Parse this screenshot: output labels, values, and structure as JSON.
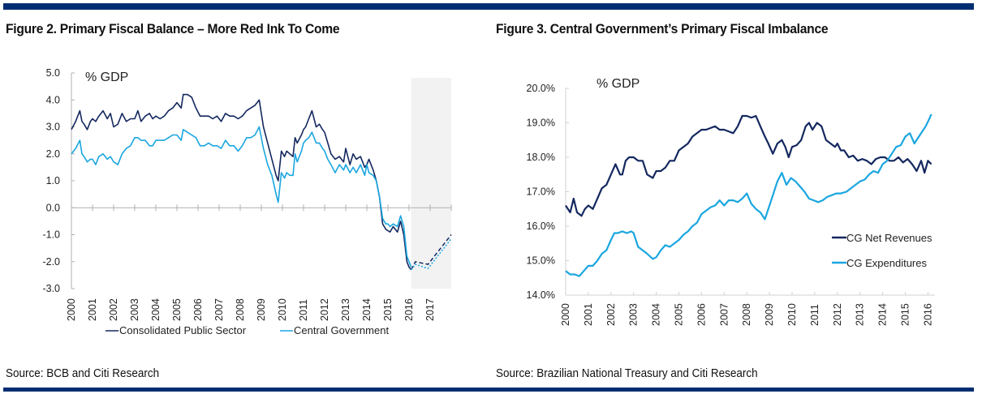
{
  "colors": {
    "dark": "#14285f",
    "light": "#1aa6e0",
    "bar": "#002d72",
    "shade": "#f2f2f2",
    "axis": "#b0b0b0"
  },
  "chart_data": [
    {
      "type": "line",
      "title": "Figure 2. Primary Fiscal Balance – More Red Ink To Come",
      "unit_label": "% GDP",
      "source": "Source: BCB and Citi Research",
      "xlabel": "",
      "ylabel": "% GDP",
      "ylim": [
        -3.0,
        5.0
      ],
      "xlim": [
        2000,
        2018
      ],
      "yticks": [
        "5.0",
        "4.0",
        "3.0",
        "2.0",
        "1.0",
        "0.0",
        "-1.0",
        "-2.0",
        "-3.0"
      ],
      "ytick_values": [
        5,
        4,
        3,
        2,
        1,
        0,
        -1,
        -2,
        -3
      ],
      "xticks": [
        "2000",
        "2001",
        "2002",
        "2003",
        "2004",
        "2005",
        "2006",
        "2007",
        "2008",
        "2009",
        "2010",
        "2011",
        "2012",
        "2013",
        "2014",
        "2015",
        "2016",
        "2017"
      ],
      "forecast_shade": [
        2016.1,
        2018
      ],
      "legend": [
        "Consolidated Public Sector",
        "Central Government"
      ],
      "legend_position": "bottom",
      "series": [
        {
          "name": "Consolidated Public Sector",
          "color": "dark",
          "x": [
            2000,
            2000.2,
            2000.4,
            2000.5,
            2000.6,
            2000.75,
            2000.9,
            2001.0,
            2001.15,
            2001.3,
            2001.5,
            2001.7,
            2001.85,
            2002.0,
            2002.2,
            2002.4,
            2002.6,
            2002.8,
            2003.0,
            2003.15,
            2003.3,
            2003.5,
            2003.7,
            2003.85,
            2004.0,
            2004.2,
            2004.4,
            2004.6,
            2004.8,
            2005.0,
            2005.2,
            2005.3,
            2005.5,
            2005.7,
            2005.9,
            2006.1,
            2006.3,
            2006.5,
            2006.7,
            2006.9,
            2007.1,
            2007.3,
            2007.5,
            2007.7,
            2007.9,
            2008.1,
            2008.3,
            2008.5,
            2008.7,
            2008.9,
            2009.1,
            2009.3,
            2009.5,
            2009.7,
            2009.8,
            2009.95,
            2010.1,
            2010.2,
            2010.35,
            2010.5,
            2010.6,
            2010.7,
            2010.9,
            2011.0,
            2011.1,
            2011.25,
            2011.4,
            2011.6,
            2011.75,
            2011.9,
            2012.0,
            2012.15,
            2012.3,
            2012.5,
            2012.7,
            2012.9,
            2013.0,
            2013.2,
            2013.35,
            2013.5,
            2013.7,
            2013.9,
            2014.0,
            2014.1,
            2014.3,
            2014.45,
            2014.6,
            2014.75,
            2014.9,
            2015.0,
            2015.1,
            2015.25,
            2015.45,
            2015.6,
            2015.75,
            2015.9,
            2016.0,
            2016.1
          ],
          "y": [
            2.9,
            3.2,
            3.6,
            3.2,
            3.1,
            2.9,
            3.2,
            3.3,
            3.2,
            3.4,
            3.6,
            3.3,
            3.5,
            3.0,
            3.1,
            3.5,
            3.2,
            3.3,
            3.3,
            3.6,
            3.2,
            3.4,
            3.5,
            3.3,
            3.4,
            3.3,
            3.4,
            3.6,
            3.7,
            3.9,
            3.7,
            4.2,
            4.2,
            4.1,
            3.7,
            3.4,
            3.4,
            3.4,
            3.3,
            3.4,
            3.2,
            3.5,
            3.4,
            3.4,
            3.3,
            3.4,
            3.6,
            3.7,
            3.8,
            4.0,
            3.0,
            2.4,
            1.8,
            1.2,
            1.0,
            2.1,
            1.9,
            2.1,
            2.0,
            1.9,
            2.6,
            2.4,
            2.7,
            2.9,
            3.0,
            3.3,
            3.6,
            3.0,
            3.1,
            2.9,
            2.8,
            2.4,
            2.0,
            1.8,
            1.9,
            1.7,
            2.2,
            1.6,
            2.0,
            1.8,
            1.9,
            1.5,
            1.6,
            1.8,
            1.4,
            1.0,
            0.4,
            -0.6,
            -0.8,
            -0.85,
            -0.9,
            -0.7,
            -0.9,
            -0.5,
            -1.0,
            -2.0,
            -2.2,
            -2.3
          ]
        },
        {
          "name": "Central Government",
          "color": "light",
          "x": [
            2000,
            2000.2,
            2000.4,
            2000.5,
            2000.6,
            2000.75,
            2000.9,
            2001.0,
            2001.15,
            2001.3,
            2001.5,
            2001.7,
            2001.85,
            2002.0,
            2002.2,
            2002.4,
            2002.6,
            2002.8,
            2003.0,
            2003.15,
            2003.3,
            2003.5,
            2003.7,
            2003.85,
            2004.0,
            2004.2,
            2004.4,
            2004.6,
            2004.8,
            2005.0,
            2005.2,
            2005.3,
            2005.5,
            2005.7,
            2005.9,
            2006.1,
            2006.3,
            2006.5,
            2006.7,
            2006.9,
            2007.1,
            2007.3,
            2007.5,
            2007.7,
            2007.9,
            2008.1,
            2008.3,
            2008.5,
            2008.7,
            2008.9,
            2009.1,
            2009.3,
            2009.5,
            2009.7,
            2009.8,
            2009.95,
            2010.1,
            2010.2,
            2010.35,
            2010.5,
            2010.6,
            2010.7,
            2010.9,
            2011.0,
            2011.1,
            2011.25,
            2011.4,
            2011.6,
            2011.75,
            2011.9,
            2012.0,
            2012.15,
            2012.3,
            2012.5,
            2012.7,
            2012.9,
            2013.0,
            2013.2,
            2013.35,
            2013.5,
            2013.7,
            2013.9,
            2014.0,
            2014.1,
            2014.3,
            2014.45,
            2014.6,
            2014.75,
            2014.9,
            2015.0,
            2015.1,
            2015.25,
            2015.45,
            2015.6,
            2015.75,
            2015.9,
            2016.0,
            2016.1
          ],
          "y": [
            2.0,
            2.2,
            2.5,
            2.0,
            1.9,
            1.7,
            1.8,
            1.8,
            1.6,
            1.9,
            2.0,
            1.8,
            1.9,
            1.7,
            1.6,
            2.0,
            2.2,
            2.3,
            2.6,
            2.6,
            2.5,
            2.5,
            2.3,
            2.3,
            2.5,
            2.5,
            2.5,
            2.6,
            2.7,
            2.7,
            2.5,
            2.9,
            2.8,
            2.7,
            2.6,
            2.3,
            2.3,
            2.4,
            2.3,
            2.3,
            2.2,
            2.5,
            2.3,
            2.3,
            2.1,
            2.3,
            2.6,
            2.6,
            2.7,
            3.0,
            2.2,
            1.6,
            1.2,
            0.5,
            0.2,
            1.3,
            1.1,
            1.3,
            1.2,
            1.2,
            2.0,
            1.7,
            2.1,
            2.4,
            2.5,
            2.6,
            2.8,
            2.4,
            2.4,
            2.2,
            2.1,
            1.8,
            1.6,
            1.3,
            1.6,
            1.4,
            1.6,
            1.3,
            1.5,
            1.3,
            1.6,
            1.2,
            1.6,
            1.3,
            1.2,
            1.0,
            0.4,
            -0.4,
            -0.6,
            -0.6,
            -0.7,
            -0.6,
            -0.7,
            -0.3,
            -0.7,
            -1.8,
            -2.0,
            -2.2
          ]
        },
        {
          "name": "Consolidated Public Sector (forecast)",
          "color": "dark",
          "dashed": true,
          "x": [
            2016.1,
            2016.3,
            2016.9,
            2018.0
          ],
          "y": [
            -2.3,
            -2.0,
            -2.1,
            -1.0
          ]
        },
        {
          "name": "Central Government (forecast)",
          "color": "light",
          "dotted": true,
          "x": [
            2016.1,
            2016.3,
            2016.9,
            2018.0
          ],
          "y": [
            -2.3,
            -2.1,
            -2.25,
            -1.15
          ]
        }
      ]
    },
    {
      "type": "line",
      "title": "Figure 3. Central Government’s Primary Fiscal Imbalance",
      "unit_label": "% GDP",
      "source": "Source: Brazilian National Treasury and Citi Research",
      "xlabel": "",
      "ylabel": "% GDP",
      "ylim": [
        14.0,
        20.0
      ],
      "xlim": [
        2000,
        2016.3
      ],
      "yticks": [
        "20.0%",
        "19.0%",
        "18.0%",
        "17.0%",
        "16.0%",
        "15.0%",
        "14.0%"
      ],
      "ytick_values": [
        20,
        19,
        18,
        17,
        16,
        15,
        14
      ],
      "xticks": [
        "2000",
        "2001",
        "2002",
        "2003",
        "2004",
        "2005",
        "2006",
        "2007",
        "2008",
        "2009",
        "2010",
        "2011",
        "2012",
        "2013",
        "2014",
        "2015",
        "2016"
      ],
      "legend": [
        "CG Net Revenues",
        "CG Expenditures"
      ],
      "legend_position": "bottom-right",
      "series": [
        {
          "name": "CG Net Revenues",
          "color": "dark",
          "x": [
            2000,
            2000.2,
            2000.35,
            2000.5,
            2000.7,
            2000.85,
            2001.0,
            2001.2,
            2001.4,
            2001.6,
            2001.8,
            2002.0,
            2002.2,
            2002.4,
            2002.5,
            2002.65,
            2002.8,
            2003.0,
            2003.2,
            2003.4,
            2003.6,
            2003.85,
            2004.0,
            2004.2,
            2004.4,
            2004.6,
            2004.8,
            2005.0,
            2005.2,
            2005.4,
            2005.6,
            2005.8,
            2006.0,
            2006.2,
            2006.4,
            2006.6,
            2006.8,
            2007.0,
            2007.2,
            2007.4,
            2007.6,
            2007.8,
            2008.0,
            2008.2,
            2008.4,
            2008.6,
            2008.8,
            2008.95,
            2009.15,
            2009.35,
            2009.55,
            2009.7,
            2009.85,
            2010.0,
            2010.2,
            2010.4,
            2010.6,
            2010.75,
            2010.9,
            2011.1,
            2011.3,
            2011.5,
            2011.7,
            2011.9,
            2012.0,
            2012.15,
            2012.3,
            2012.5,
            2012.7,
            2012.9,
            2013.1,
            2013.3,
            2013.5,
            2013.7,
            2013.9,
            2014.1,
            2014.3,
            2014.5,
            2014.7,
            2014.9,
            2015.1,
            2015.3,
            2015.5,
            2015.7,
            2015.85,
            2016.0,
            2016.15
          ],
          "y": [
            16.6,
            16.4,
            16.8,
            16.4,
            16.3,
            16.5,
            16.6,
            16.5,
            16.8,
            17.1,
            17.2,
            17.5,
            17.8,
            17.5,
            17.5,
            17.9,
            18.0,
            18.0,
            17.9,
            17.9,
            17.5,
            17.4,
            17.6,
            17.6,
            17.7,
            17.9,
            17.9,
            18.2,
            18.3,
            18.4,
            18.6,
            18.7,
            18.8,
            18.8,
            18.85,
            18.9,
            18.8,
            18.8,
            18.75,
            18.7,
            18.9,
            19.2,
            19.2,
            19.15,
            19.2,
            18.9,
            18.6,
            18.4,
            18.1,
            18.4,
            18.5,
            18.3,
            18.0,
            18.3,
            18.35,
            18.5,
            18.9,
            19.0,
            18.8,
            19.0,
            18.9,
            18.5,
            18.4,
            18.3,
            18.4,
            18.2,
            18.2,
            18.0,
            18.05,
            17.9,
            17.95,
            17.9,
            17.8,
            17.95,
            18.0,
            18.0,
            17.9,
            17.9,
            18.0,
            17.85,
            17.95,
            17.8,
            17.6,
            17.9,
            17.55,
            17.9,
            17.8
          ]
        },
        {
          "name": "CG Expenditures",
          "color": "light",
          "x": [
            2000,
            2000.2,
            2000.4,
            2000.6,
            2000.8,
            2001.0,
            2001.2,
            2001.4,
            2001.6,
            2001.8,
            2002.0,
            2002.15,
            2002.3,
            2002.5,
            2002.7,
            2002.9,
            2003.0,
            2003.2,
            2003.4,
            2003.6,
            2003.85,
            2004.0,
            2004.2,
            2004.4,
            2004.6,
            2004.8,
            2005.0,
            2005.2,
            2005.4,
            2005.6,
            2005.8,
            2006.0,
            2006.2,
            2006.4,
            2006.6,
            2006.8,
            2007.0,
            2007.2,
            2007.4,
            2007.6,
            2007.8,
            2008.0,
            2008.2,
            2008.4,
            2008.6,
            2008.8,
            2008.95,
            2009.15,
            2009.35,
            2009.55,
            2009.75,
            2009.95,
            2010.15,
            2010.35,
            2010.55,
            2010.75,
            2010.95,
            2011.15,
            2011.35,
            2011.55,
            2011.75,
            2011.95,
            2012.15,
            2012.4,
            2012.6,
            2012.8,
            2013.0,
            2013.2,
            2013.4,
            2013.6,
            2013.8,
            2014.0,
            2014.2,
            2014.4,
            2014.6,
            2014.8,
            2015.0,
            2015.2,
            2015.4,
            2015.6,
            2015.75,
            2015.9,
            2016.05,
            2016.15
          ],
          "y": [
            14.7,
            14.6,
            14.6,
            14.55,
            14.7,
            14.85,
            14.85,
            15.0,
            15.2,
            15.3,
            15.6,
            15.8,
            15.8,
            15.85,
            15.8,
            15.85,
            15.8,
            15.4,
            15.3,
            15.2,
            15.05,
            15.1,
            15.3,
            15.45,
            15.4,
            15.5,
            15.6,
            15.75,
            15.85,
            16.0,
            16.1,
            16.35,
            16.45,
            16.55,
            16.6,
            16.75,
            16.6,
            16.75,
            16.75,
            16.7,
            16.8,
            16.95,
            16.65,
            16.5,
            16.4,
            16.2,
            16.5,
            16.9,
            17.3,
            17.55,
            17.2,
            17.4,
            17.3,
            17.15,
            17.0,
            16.8,
            16.75,
            16.7,
            16.75,
            16.85,
            16.9,
            16.95,
            16.95,
            17.0,
            17.1,
            17.2,
            17.3,
            17.35,
            17.5,
            17.6,
            17.55,
            17.8,
            17.9,
            18.1,
            18.3,
            18.35,
            18.6,
            18.7,
            18.4,
            18.6,
            18.75,
            18.9,
            19.1,
            19.25
          ]
        }
      ]
    }
  ]
}
